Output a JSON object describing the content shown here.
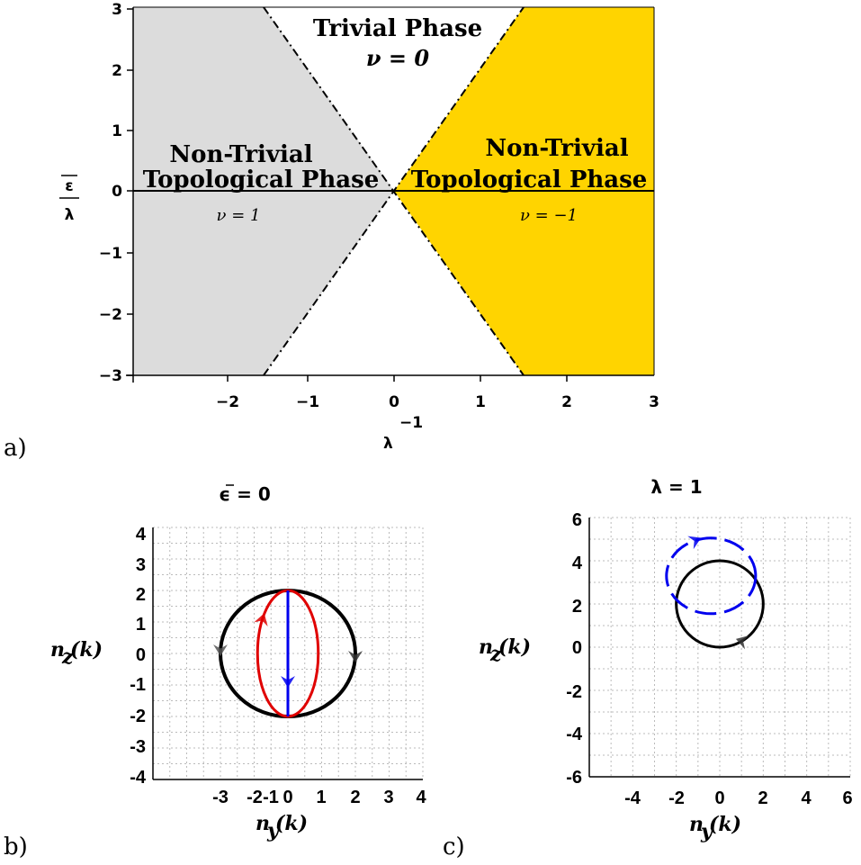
{
  "panel_labels": {
    "a": "a)",
    "b": "b)",
    "c": "c)"
  },
  "chart_data": [
    {
      "type": "area",
      "title": "",
      "xlabel": "λ",
      "xlabel_sup": "−1",
      "ylabel_num": "ε",
      "ylabel_den": "λ",
      "xlim": [
        -3,
        3
      ],
      "ylim": [
        -3,
        3
      ],
      "xticks": [
        "−2",
        "−1",
        "0",
        "1",
        "2",
        "3"
      ],
      "yticks": [
        "−3",
        "−2",
        "−1",
        "0",
        "1",
        "2",
        "3"
      ],
      "boundaries": [
        {
          "name": "y = 2x",
          "x": [
            -1.5,
            1.5
          ],
          "y": [
            -3,
            3
          ],
          "style": "dash-dot"
        },
        {
          "name": "y = -2x",
          "x": [
            -1.5,
            1.5
          ],
          "y": [
            3,
            -3
          ],
          "style": "dash-dot"
        }
      ],
      "regions": [
        {
          "label_line1": "Trivial Phase",
          "label_line2": "ν = 0",
          "color": "#ffffff"
        },
        {
          "label_line1": "Non-Trivial",
          "label_line2": "Topological Phase",
          "nu": "ν = 1",
          "color": "#dcdcdc"
        },
        {
          "label_line1": "Non-Trivial",
          "label_line2": "Topological Phase",
          "nu": "ν = −1",
          "color": "#ffd400"
        }
      ],
      "colors": {
        "gray_region": "#dcdcdc",
        "gold_region": "#ffd400"
      }
    },
    {
      "type": "line",
      "title": "ϵ = 0",
      "xlabel": "n",
      "xlabel_sub": "y",
      "xlabel_arg": "(k)",
      "ylabel": "n",
      "ylabel_sub": "z",
      "ylabel_arg": "(k)",
      "xlim": [
        -4,
        4
      ],
      "ylim": [
        -4,
        4
      ],
      "xticks": [
        "-3",
        "-2",
        "-1",
        "0",
        "1",
        "2",
        "3",
        "4"
      ],
      "yticks": [
        "4",
        "3",
        "2",
        "1",
        "0",
        "-1",
        "-2",
        "-3",
        "-4"
      ],
      "series": [
        {
          "shape": "circle",
          "center": [
            0,
            0
          ],
          "rx": 2,
          "ry": 2,
          "color": "#000000"
        },
        {
          "shape": "ellipse",
          "center": [
            0,
            0
          ],
          "rx": 0.9,
          "ry": 2,
          "color": "#e00000"
        },
        {
          "shape": "segment",
          "x": [
            0,
            0
          ],
          "y": [
            2,
            -2
          ],
          "color": "#0000ee"
        }
      ]
    },
    {
      "type": "line",
      "title": "λ = 1",
      "xlabel": "n",
      "xlabel_sub": "y",
      "xlabel_arg": "(k)",
      "ylabel": "n",
      "ylabel_sub": "z",
      "ylabel_arg": "(k)",
      "xlim": [
        -6,
        6
      ],
      "ylim": [
        -6,
        6
      ],
      "xticks": [
        "-4",
        "-2",
        "0",
        "2",
        "4",
        "6"
      ],
      "yticks": [
        "6",
        "4",
        "2",
        "0",
        "-2",
        "-4",
        "-6"
      ],
      "series": [
        {
          "shape": "circle",
          "center": [
            0,
            2
          ],
          "rx": 2,
          "ry": 2,
          "color": "#000000"
        },
        {
          "shape": "dashed-circle",
          "center": [
            -0.4,
            3.3
          ],
          "rx": 2.05,
          "ry": 1.75,
          "color": "#0000ee"
        }
      ]
    }
  ]
}
